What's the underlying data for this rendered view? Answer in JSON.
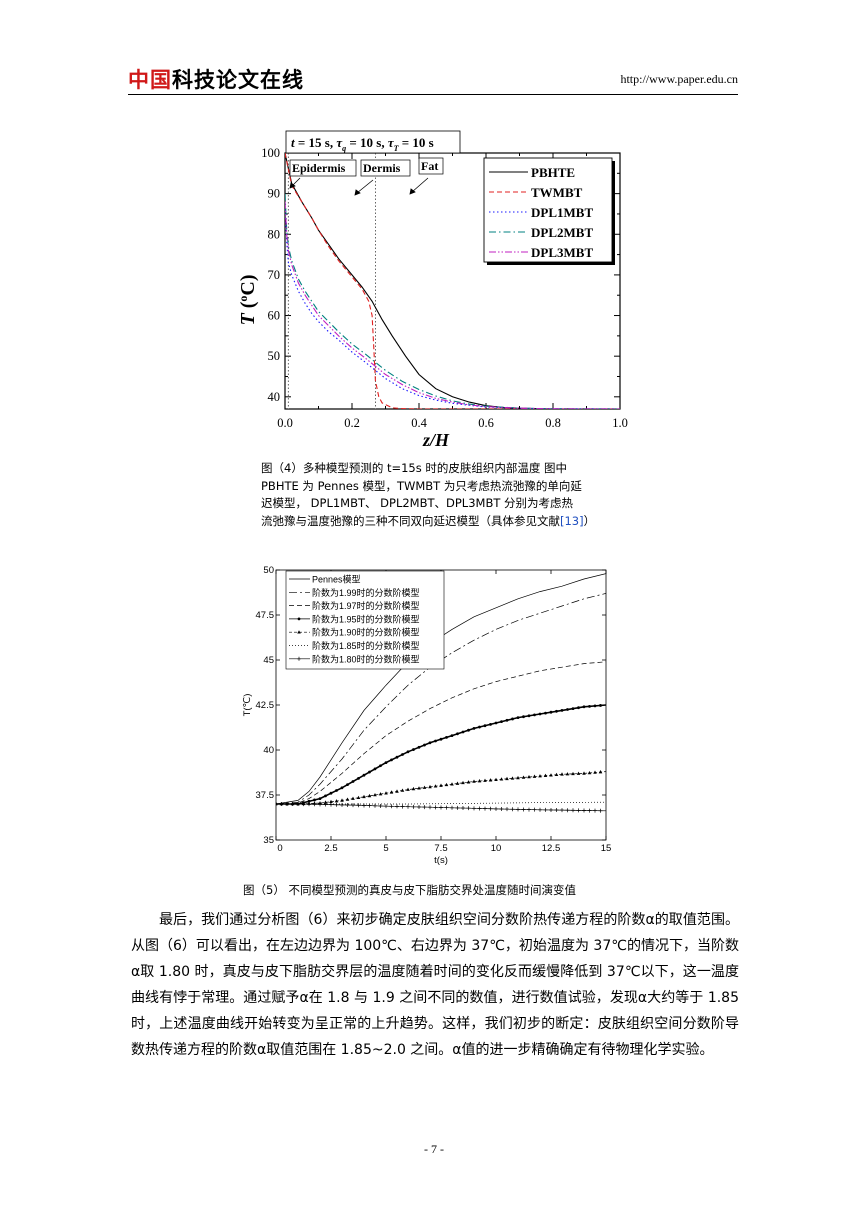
{
  "header": {
    "logo_red": "中国",
    "logo_black": "科技论文在线",
    "url": "http://www.paper.edu.cn"
  },
  "figure4": {
    "params": {
      "t": "t",
      "t_val": " = 15 s, ",
      "tau": "τ",
      "q": "q",
      "q_val": " = 10 s, ",
      "T": "T",
      "T_val": " = 10 s"
    },
    "regions": [
      "Epidermis",
      "Dermis",
      "Fat"
    ],
    "caption_lines": [
      "图（4）多种模型预测的 t=15s 时的皮肤组织内部温度    图中",
      "PBHTE 为 Pennes 模型，TWMBT 为只考虑热流弛豫的单向延",
      "迟模型，  DPL1MBT、  DPL2MBT、DPL3MBT 分别为考虑热",
      "流弛豫与温度弛豫的三种不同双向延迟模型（具体参见文献"
    ],
    "caption_ref": "[13]",
    "caption_end": "）"
  },
  "figure5": {
    "caption": "图（5）   不同模型预测的真皮与皮下脂肪交界处温度随时间演变值"
  },
  "body_text": "最后，我们通过分析图（6）来初步确定皮肤组织空间分数阶热传递方程的阶数α的取值范围。从图（6）可以看出，在左边边界为 100℃、右边界为 37℃，初始温度为 37℃的情况下，当阶数α取 1.80 时，真皮与皮下脂肪交界层的温度随着时间的变化反而缓慢降低到 37℃以下，这一温度曲线有悖于常理。通过赋予α在 1.8 与 1.9 之间不同的数值，进行数值试验，发现α大约等于  1.85 时，上述温度曲线开始转变为呈正常的上升趋势。这样，我们初步的断定：皮肤组织空间分数阶导数热传递方程的阶数α取值范围在 1.85~2.0 之间。α值的进一步精确确定有待物理化学实验。",
  "page_number": "- 7 -",
  "chart_data": [
    {
      "type": "line",
      "xlabel": "z/H",
      "ylabel": "T (°C)",
      "xlim": [
        0,
        1.0
      ],
      "ylim": [
        37,
        100
      ],
      "xticks": [
        "0.0",
        "0.2",
        "0.4",
        "0.6",
        "0.8",
        "1.0"
      ],
      "yticks": [
        "40",
        "50",
        "60",
        "70",
        "80",
        "90",
        "100"
      ],
      "grid": false,
      "legend": "top-right",
      "boundaries": [
        0.01,
        0.27
      ],
      "series": [
        {
          "name": "PBHTE",
          "color": "#000000",
          "dash": "",
          "x": [
            0,
            0.02,
            0.05,
            0.08,
            0.1,
            0.13,
            0.16,
            0.2,
            0.23,
            0.26,
            0.27,
            0.29,
            0.32,
            0.36,
            0.4,
            0.45,
            0.5,
            0.55,
            0.6,
            0.65,
            0.7,
            0.8,
            0.9,
            1.0
          ],
          "y": [
            100,
            92.5,
            88,
            84,
            81,
            77.5,
            74,
            70,
            67,
            63.5,
            62,
            59,
            55,
            50,
            45.5,
            42,
            40,
            38.7,
            37.8,
            37.4,
            37.2,
            37,
            37,
            37
          ]
        },
        {
          "name": "TWMBT",
          "color": "#e02020",
          "dash": "5,3",
          "x": [
            0,
            0.02,
            0.05,
            0.08,
            0.1,
            0.13,
            0.16,
            0.2,
            0.23,
            0.25,
            0.26,
            0.265,
            0.27,
            0.28,
            0.29,
            0.32,
            0.35,
            0.4,
            0.5,
            0.6,
            0.8,
            1.0
          ],
          "y": [
            100,
            92,
            88,
            84,
            81,
            77,
            73.5,
            69.5,
            66.5,
            63.5,
            60,
            52,
            44,
            40,
            38.5,
            37.3,
            37.1,
            37,
            37,
            37,
            37,
            37
          ]
        },
        {
          "name": "DPL1MBT",
          "color": "#1a1aff",
          "dash": "1.5,2.5",
          "x": [
            0,
            0.005,
            0.01,
            0.02,
            0.04,
            0.06,
            0.08,
            0.1,
            0.13,
            0.16,
            0.2,
            0.24,
            0.27,
            0.3,
            0.35,
            0.4,
            0.45,
            0.5,
            0.55,
            0.6,
            0.7,
            0.8,
            1.0
          ],
          "y": [
            87,
            78,
            73,
            70,
            66,
            63,
            60.5,
            58.5,
            56,
            54,
            51,
            48.5,
            46.5,
            44.5,
            42,
            40.3,
            39.2,
            38.4,
            37.9,
            37.5,
            37.2,
            37.05,
            37
          ]
        },
        {
          "name": "DPL2MBT",
          "color": "#008080",
          "dash": "7,3,1.5,3",
          "x": [
            0,
            0.005,
            0.01,
            0.02,
            0.04,
            0.06,
            0.08,
            0.1,
            0.13,
            0.16,
            0.2,
            0.24,
            0.27,
            0.3,
            0.35,
            0.4,
            0.45,
            0.5,
            0.55,
            0.6,
            0.7,
            0.8,
            1.0
          ],
          "y": [
            90,
            81,
            77,
            73.5,
            69,
            66,
            63.5,
            61,
            58.5,
            56,
            53,
            50.5,
            48.5,
            46.5,
            43.8,
            41.8,
            40.2,
            39,
            38.2,
            37.7,
            37.2,
            37.05,
            37
          ]
        },
        {
          "name": "DPL3MBT",
          "color": "#c020c0",
          "dash": "7,2,1.5,2,1.5,2",
          "x": [
            0,
            0.005,
            0.01,
            0.02,
            0.04,
            0.06,
            0.08,
            0.1,
            0.13,
            0.16,
            0.2,
            0.24,
            0.27,
            0.3,
            0.35,
            0.4,
            0.45,
            0.5,
            0.55,
            0.6,
            0.7,
            0.8,
            1.0
          ],
          "y": [
            88,
            80,
            76,
            72.5,
            68,
            65,
            62.5,
            60,
            57.5,
            55,
            52,
            49.5,
            47.5,
            45.5,
            43,
            41,
            39.6,
            38.7,
            38,
            37.6,
            37.2,
            37.05,
            37
          ]
        }
      ]
    },
    {
      "type": "line",
      "xlabel": "t(s)",
      "ylabel": "T(℃)",
      "xlim": [
        0,
        15
      ],
      "ylim": [
        35,
        50
      ],
      "xticks": [
        "0",
        "2.5",
        "5",
        "7.5",
        "10",
        "12.5",
        "15"
      ],
      "yticks": [
        "35",
        "37.5",
        "40",
        "42.5",
        "45",
        "47.5",
        "50"
      ],
      "grid": false,
      "legend": "top-left",
      "series": [
        {
          "name": "Pennes模型",
          "dash": "",
          "marker": "",
          "x": [
            0,
            1,
            1.5,
            2,
            3,
            4,
            5,
            6,
            7,
            8,
            9,
            10,
            11,
            12,
            13,
            14,
            15
          ],
          "y": [
            37,
            37.2,
            37.7,
            38.5,
            40.4,
            42.2,
            43.6,
            44.9,
            45.9,
            46.7,
            47.4,
            47.9,
            48.4,
            48.8,
            49.1,
            49.5,
            49.8
          ]
        },
        {
          "name": "阶数为1.99时的分数阶模型",
          "dash": "8,3,2,3",
          "marker": "",
          "x": [
            0,
            1,
            1.5,
            2,
            3,
            4,
            5,
            6,
            7,
            8,
            9,
            10,
            11,
            12,
            13,
            14,
            15
          ],
          "y": [
            37,
            37.1,
            37.5,
            38.1,
            39.5,
            41.1,
            42.4,
            43.6,
            44.6,
            45.4,
            46.1,
            46.7,
            47.2,
            47.6,
            48,
            48.4,
            48.7
          ]
        },
        {
          "name": "阶数为1.97时的分数阶模型",
          "dash": "5,3",
          "marker": "",
          "x": [
            0,
            1,
            1.5,
            2,
            3,
            4,
            5,
            6,
            7,
            8,
            9,
            10,
            11,
            12,
            13,
            14,
            15
          ],
          "y": [
            37,
            37.05,
            37.3,
            37.7,
            38.7,
            39.8,
            40.8,
            41.6,
            42.3,
            42.9,
            43.4,
            43.8,
            44.1,
            44.4,
            44.6,
            44.8,
            44.9
          ]
        },
        {
          "name": "阶数为1.95时的分数阶模型",
          "dash": "",
          "marker": "dot",
          "x": [
            0,
            1,
            2,
            3,
            4,
            5,
            6,
            7,
            8,
            9,
            10,
            11,
            12,
            13,
            14,
            15
          ],
          "y": [
            37,
            37,
            37.3,
            37.9,
            38.6,
            39.3,
            39.9,
            40.4,
            40.8,
            41.2,
            41.5,
            41.8,
            42,
            42.2,
            42.4,
            42.5
          ]
        },
        {
          "name": "阶数为1.90时的分数阶模型",
          "dash": "3,2",
          "marker": "tri",
          "x": [
            0,
            1,
            2,
            3,
            4,
            5,
            6,
            7,
            8,
            9,
            10,
            11,
            12,
            13,
            14,
            15
          ],
          "y": [
            37,
            37,
            37.05,
            37.2,
            37.4,
            37.6,
            37.8,
            37.95,
            38.1,
            38.25,
            38.35,
            38.45,
            38.55,
            38.65,
            38.7,
            38.8
          ]
        },
        {
          "name": "阶数为1.85时的分数阶模型",
          "dash": "1,2",
          "marker": "",
          "x": [
            0,
            2,
            4,
            6,
            8,
            10,
            12,
            15
          ],
          "y": [
            37,
            37,
            37,
            37,
            37.02,
            37.05,
            37.08,
            37.1
          ]
        },
        {
          "name": "阶数为1.80时的分数阶模型",
          "dash": "",
          "marker": "plus",
          "x": [
            0,
            1,
            2,
            3,
            4,
            5,
            6,
            7,
            8,
            9,
            10,
            11,
            12,
            13,
            14,
            15
          ],
          "y": [
            37,
            37,
            36.98,
            36.95,
            36.92,
            36.88,
            36.85,
            36.82,
            36.79,
            36.76,
            36.73,
            36.7,
            36.68,
            36.66,
            36.64,
            36.62
          ]
        }
      ]
    }
  ]
}
